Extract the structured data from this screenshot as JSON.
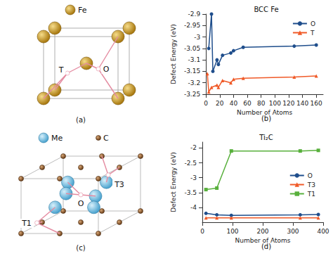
{
  "chart_data": [
    {
      "type": "line",
      "panel_label": "(b)",
      "title": "BCC Fe",
      "x_label": "Number of Atoms",
      "y_label": "Defect Energy (eV)",
      "xlim": [
        0,
        170
      ],
      "xticks": [
        0,
        20,
        40,
        60,
        80,
        100,
        120,
        140,
        160
      ],
      "ylim": [
        -3.25,
        -2.9
      ],
      "yticks": [
        -3.25,
        -3.2,
        -3.15,
        -3.1,
        -3.05,
        -3,
        -2.95,
        -2.9
      ],
      "grid": false,
      "legend": "upper right",
      "series": [
        {
          "name": "O",
          "color": "#1f4e8c",
          "marker": "circle",
          "x": [
            4,
            8,
            10,
            16,
            18,
            24,
            36,
            40,
            54,
            128,
            160
          ],
          "values": [
            -3.05,
            -2.9,
            -3.15,
            -3.1,
            -3.12,
            -3.08,
            -3.07,
            -3.06,
            -3.045,
            -3.04,
            -3.035
          ]
        },
        {
          "name": "T",
          "color": "#f05a28",
          "marker": "triangle",
          "x": [
            2,
            4,
            8,
            16,
            18,
            24,
            36,
            40,
            54,
            128,
            160
          ],
          "values": [
            -3.16,
            -3.24,
            -3.22,
            -3.21,
            -3.22,
            -3.19,
            -3.2,
            -3.185,
            -3.18,
            -3.175,
            -3.17
          ]
        }
      ]
    },
    {
      "type": "line",
      "panel_label": "(d)",
      "title": "Ti₂C",
      "x_label": "Number of Atoms",
      "y_label": "Defect Energy (eV)",
      "xlim": [
        0,
        400
      ],
      "xticks": [
        0,
        100,
        200,
        300,
        400
      ],
      "ylim": [
        -4.5,
        -1.8
      ],
      "yticks": [
        -4,
        -3.5,
        -3,
        -2.5,
        -2
      ],
      "grid": false,
      "legend": "right",
      "series": [
        {
          "name": "O",
          "color": "#1f4e8c",
          "marker": "circle",
          "x": [
            12,
            48,
            96,
            324,
            384
          ],
          "values": [
            -4.2,
            -4.25,
            -4.27,
            -4.25,
            -4.24
          ]
        },
        {
          "name": "T3",
          "color": "#f05a28",
          "marker": "triangle",
          "x": [
            12,
            48,
            96,
            324,
            384
          ],
          "values": [
            -4.35,
            -4.35,
            -4.35,
            -4.35,
            -4.35
          ]
        },
        {
          "name": "T1",
          "color": "#58b03c",
          "marker": "square",
          "x": [
            12,
            48,
            96,
            324,
            384
          ],
          "values": [
            -3.4,
            -3.35,
            -2.1,
            -2.1,
            -2.08
          ]
        }
      ]
    }
  ],
  "diagrams": [
    {
      "panel_label": "(a)",
      "atoms": [
        "Fe"
      ],
      "sites": [
        "T",
        "O"
      ]
    },
    {
      "panel_label": "(c)",
      "atoms": [
        "Me",
        "C"
      ],
      "sites": [
        "T1",
        "O",
        "T3"
      ]
    }
  ]
}
